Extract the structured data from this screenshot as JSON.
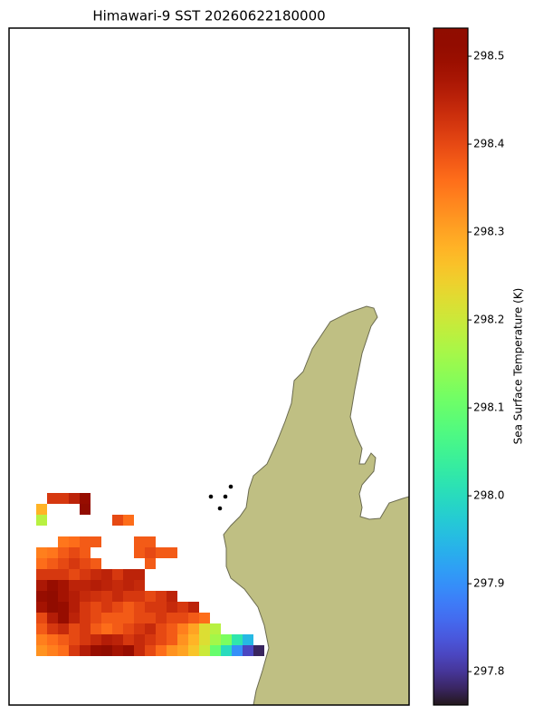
{
  "chart_data": {
    "type": "heatmap",
    "title": "Himawari-9 SST 20260622180000",
    "colorbar_label": "Sea Surface Temperature (K)",
    "clim": [
      297.762,
      298.532
    ],
    "colorbar_ticks": [
      297.8,
      297.9,
      {
        "value": 298,
        "label": "298.0"
      },
      298.1,
      298.2,
      298.3,
      298.4,
      298.5
    ],
    "colormap": "turbo",
    "land_color": "#bfbf83",
    "values": [
      [
        null,
        298.42,
        298.42,
        298.45,
        298.5,
        null,
        null,
        null,
        null,
        null,
        null,
        null,
        null,
        null,
        null,
        null,
        null,
        null,
        null,
        null,
        null
      ],
      [
        298.28,
        null,
        null,
        null,
        298.52,
        null,
        null,
        null,
        null,
        null,
        null,
        null,
        null,
        null,
        null,
        null,
        null,
        null,
        null,
        null,
        null
      ],
      [
        298.18,
        null,
        null,
        null,
        null,
        null,
        null,
        298.4,
        298.36,
        null,
        null,
        null,
        null,
        null,
        null,
        null,
        null,
        null,
        null,
        null,
        null
      ],
      [
        null,
        null,
        null,
        null,
        null,
        null,
        null,
        null,
        null,
        null,
        null,
        null,
        null,
        null,
        null,
        null,
        null,
        null,
        null,
        null,
        null
      ],
      [
        null,
        null,
        298.35,
        298.36,
        298.38,
        298.38,
        null,
        null,
        null,
        298.38,
        298.38,
        null,
        null,
        null,
        null,
        null,
        null,
        null,
        null,
        null,
        null
      ],
      [
        298.34,
        298.35,
        298.38,
        298.4,
        298.38,
        null,
        null,
        null,
        null,
        298.38,
        298.4,
        298.38,
        298.38,
        null,
        null,
        null,
        null,
        null,
        null,
        null,
        null
      ],
      [
        298.36,
        298.38,
        298.4,
        298.42,
        298.4,
        298.38,
        null,
        null,
        null,
        null,
        298.38,
        null,
        null,
        null,
        null,
        null,
        null,
        null,
        null,
        null,
        null
      ],
      [
        298.42,
        298.42,
        298.42,
        298.4,
        298.42,
        298.44,
        298.45,
        298.42,
        298.45,
        298.45,
        null,
        null,
        null,
        null,
        null,
        null,
        null,
        null,
        null,
        null,
        null
      ],
      [
        298.47,
        298.5,
        298.48,
        298.45,
        298.45,
        298.46,
        298.45,
        298.44,
        298.45,
        298.44,
        null,
        null,
        null,
        null,
        null,
        null,
        null,
        null,
        null,
        null,
        null
      ],
      [
        298.5,
        298.52,
        298.48,
        298.46,
        298.44,
        298.43,
        298.42,
        298.44,
        298.42,
        298.42,
        298.4,
        298.42,
        298.45,
        null,
        null,
        null,
        null,
        null,
        null,
        null,
        null
      ],
      [
        298.48,
        298.52,
        298.5,
        298.46,
        298.42,
        298.4,
        298.42,
        298.4,
        298.38,
        298.4,
        298.42,
        298.42,
        298.44,
        298.42,
        298.45,
        null,
        null,
        null,
        null,
        null,
        null
      ],
      [
        298.4,
        298.46,
        298.5,
        298.45,
        298.42,
        298.4,
        298.38,
        298.38,
        298.38,
        298.4,
        298.4,
        298.42,
        298.4,
        298.4,
        298.38,
        298.36,
        null,
        null,
        null,
        null,
        null
      ],
      [
        298.38,
        298.42,
        298.44,
        298.4,
        298.42,
        298.38,
        298.36,
        298.38,
        298.4,
        298.42,
        298.44,
        298.4,
        298.38,
        298.34,
        298.3,
        298.22,
        298.18,
        null,
        null,
        null,
        null
      ],
      [
        298.34,
        298.36,
        298.38,
        298.4,
        298.42,
        298.44,
        298.46,
        298.45,
        298.42,
        298.44,
        298.42,
        298.4,
        298.38,
        298.32,
        298.28,
        298.22,
        298.16,
        298.12,
        298.02,
        297.95,
        null
      ],
      [
        298.32,
        298.34,
        298.36,
        298.42,
        298.46,
        298.5,
        298.52,
        298.48,
        298.5,
        298.44,
        298.4,
        298.36,
        298.32,
        298.3,
        298.26,
        298.2,
        298.1,
        298.0,
        297.9,
        297.82,
        297.78
      ]
    ]
  }
}
